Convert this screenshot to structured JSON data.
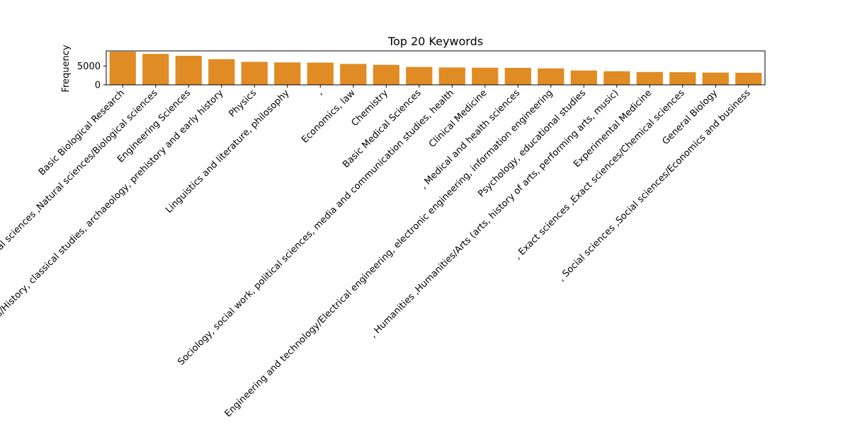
{
  "chart_data": {
    "type": "bar",
    "title": "Top 20 Keywords",
    "xlabel": "",
    "ylabel": "Frequency",
    "ylim": [
      0,
      9000
    ],
    "yticks": [
      0,
      5000
    ],
    "grid": false,
    "legend": "none",
    "bar_color": "#e08b23",
    "categories": [
      "Basic Biological Research",
      ", Natural sciences ,Natural sciences/Biological sciences",
      "Engineering Sciences",
      "Humanities/History, classical studies, archaeology, prehistory and early history",
      "Physics",
      "Linguistics and literature, philosophy",
      ",",
      "Economics, law",
      "Chemistry",
      "Basic Medical Sciences",
      "Sociology, social work, political sciences, media and communication studies, health",
      "Clinical Medicine",
      ", Medical and health sciences",
      "Engineering and technology/Electrical engineering, electronic engineering, information engineering",
      "Psychology, educational studies",
      ", Humanities ,Humanities/Arts (arts, history of arts, performing arts, music)",
      "Experimental Medicine",
      ", Exact sciences ,Exact sciences/Chemical sciences",
      "General Biology",
      ", Social sciences ,Social sciences/Economics and business"
    ],
    "values": [
      8800,
      8200,
      7700,
      6800,
      6100,
      5950,
      5900,
      5550,
      5300,
      4750,
      4600,
      4550,
      4500,
      4350,
      3800,
      3600,
      3400,
      3350,
      3250,
      3200
    ]
  }
}
